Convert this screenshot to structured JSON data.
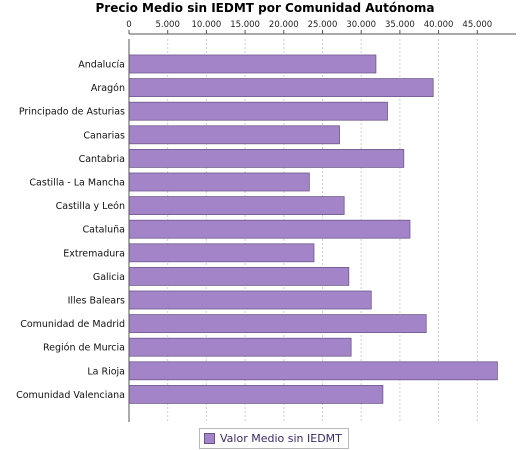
{
  "chart_data": {
    "type": "bar",
    "orientation": "horizontal",
    "title": "Precio Medio sin IEDMT por Comunidad Autónoma",
    "xlabel": "",
    "ylabel": "",
    "xlim": [
      0,
      50000
    ],
    "x_ticks": [
      0,
      5000,
      10000,
      15000,
      20000,
      25000,
      30000,
      35000,
      40000,
      45000
    ],
    "x_tick_labels": [
      "0",
      "5.000",
      "10.000",
      "15.000",
      "20.000",
      "25.000",
      "30.000",
      "35.000",
      "40.000",
      "45.000"
    ],
    "x_axis_position": "top",
    "grid": "vertical dashed",
    "legend_position": "bottom-center",
    "categories": [
      "Andalucía",
      "Aragón",
      "Principado de Asturias",
      "Canarias",
      "Cantabria",
      "Castilla - La Mancha",
      "Castilla y León",
      "Cataluña",
      "Extremadura",
      "Galicia",
      "Illes Balears",
      "Comunidad de Madrid",
      "Región de Murcia",
      "La Rioja",
      "Comunidad Valenciana"
    ],
    "series": [
      {
        "name": "Valor Medio sin IEDMT",
        "color": "#a384c8",
        "values": [
          31900,
          39300,
          33400,
          27200,
          35500,
          23300,
          27800,
          36300,
          23900,
          28400,
          31300,
          38400,
          28700,
          47600,
          32800
        ]
      }
    ]
  }
}
